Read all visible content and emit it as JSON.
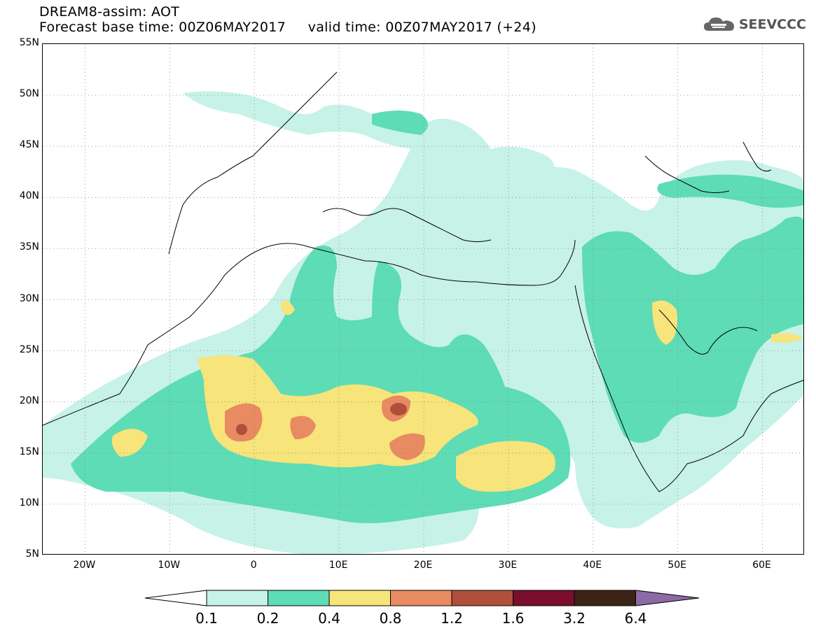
{
  "title": {
    "line1": "DREAM8-assim: AOT",
    "line2": "Forecast base time: 00Z06MAY2017     valid time: 00Z07MAY2017 (+24)"
  },
  "logo": {
    "text": "SEEVCCC",
    "icon": "cloud-icon"
  },
  "map": {
    "lat_labels": [
      "55N",
      "50N",
      "45N",
      "40N",
      "35N",
      "30N",
      "25N",
      "20N",
      "15N",
      "10N",
      "5N"
    ],
    "lon_labels": [
      "20W",
      "10W",
      "0",
      "10E",
      "20E",
      "30E",
      "40E",
      "50E",
      "60E"
    ],
    "lon_range": [
      -25,
      65
    ],
    "lat_range": [
      5,
      55
    ],
    "grid": "dotted"
  },
  "colorbar": {
    "levels": [
      "0.1",
      "0.2",
      "0.4",
      "0.8",
      "1.2",
      "1.6",
      "3.2",
      "6.4"
    ],
    "colors": [
      "#ffffff",
      "#c6f2e8",
      "#5ddcb6",
      "#f7e47a",
      "#e88a62",
      "#b0503a",
      "#7a0e2c",
      "#3b2416",
      "#8c6aa6"
    ]
  }
}
